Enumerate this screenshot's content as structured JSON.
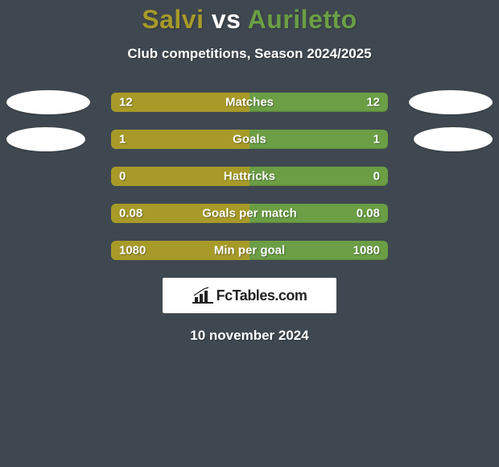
{
  "background_color": "#3f4850",
  "title": {
    "player1": "Salvi",
    "vs": "vs",
    "player2": "Auriletto",
    "player1_color": "#a79a28",
    "player2_color": "#6b9e45"
  },
  "subtitle": "Club competitions, Season 2024/2025",
  "bar_track_color": "#6b9e45",
  "bar_left_color": "#a79a28",
  "rows": [
    {
      "label": "Matches",
      "left_value": "12",
      "right_value": "12",
      "left_pct": 50,
      "left_ellipse_width": 104,
      "right_ellipse_width": 104
    },
    {
      "label": "Goals",
      "left_value": "1",
      "right_value": "1",
      "left_pct": 50,
      "left_ellipse_width": 98,
      "right_ellipse_width": 98
    },
    {
      "label": "Hattricks",
      "left_value": "0",
      "right_value": "0",
      "left_pct": 50,
      "left_ellipse_width": 0,
      "right_ellipse_width": 0
    },
    {
      "label": "Goals per match",
      "left_value": "0.08",
      "right_value": "0.08",
      "left_pct": 50,
      "left_ellipse_width": 0,
      "right_ellipse_width": 0
    },
    {
      "label": "Min per goal",
      "left_value": "1080",
      "right_value": "1080",
      "left_pct": 50,
      "left_ellipse_width": 0,
      "right_ellipse_width": 0
    }
  ],
  "logo": {
    "icon_name": "bar-chart-icon",
    "text": "FcTables.com"
  },
  "date": "10 november 2024"
}
